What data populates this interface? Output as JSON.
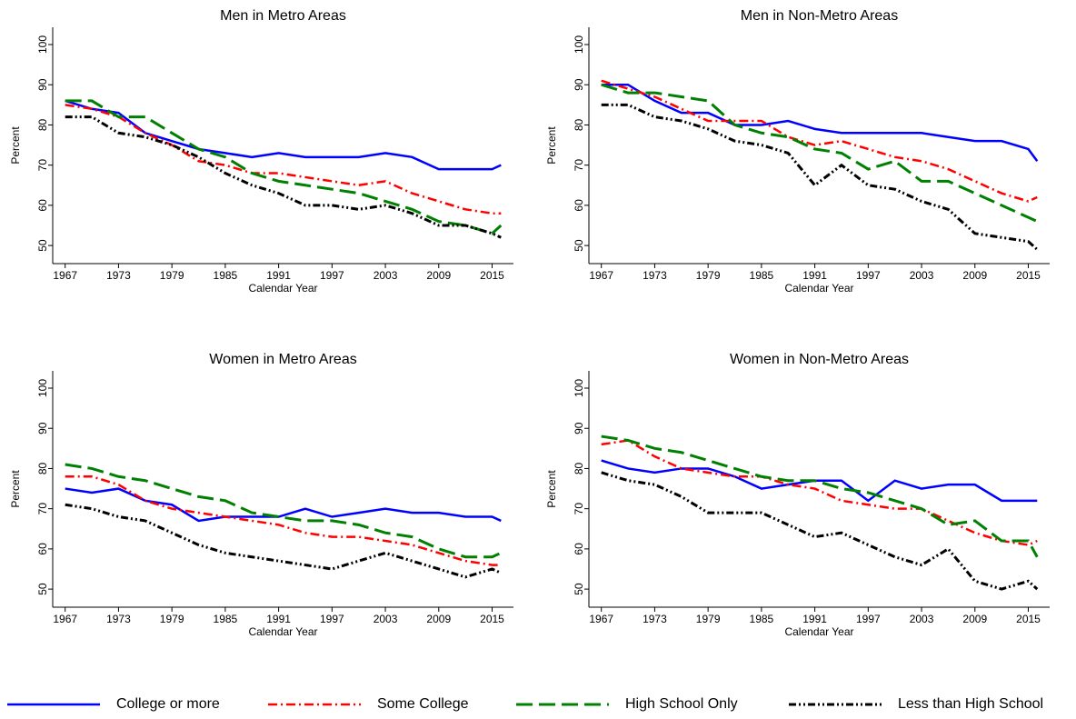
{
  "chart_data": [
    {
      "type": "line",
      "title": "Men in Metro Areas",
      "x_label": "Calendar Year",
      "y_label": "Percent",
      "x": [
        1967,
        1970,
        1973,
        1976,
        1979,
        1982,
        1985,
        1988,
        1991,
        1994,
        1997,
        2000,
        2003,
        2006,
        2009,
        2012,
        2015,
        2016
      ],
      "xlim": [
        1965.6,
        2017.4
      ],
      "ylim": [
        45.5,
        104.3
      ],
      "xticks": [
        1967,
        1973,
        1979,
        1985,
        1991,
        1997,
        2003,
        2009,
        2015
      ],
      "yticks": [
        50,
        60,
        70,
        80,
        90,
        100
      ],
      "series": [
        {
          "name": "College or more",
          "color": "#0000ff",
          "values": [
            86,
            84,
            83,
            78,
            76,
            74,
            73,
            72,
            73,
            72,
            72,
            72,
            73,
            72,
            69,
            69,
            69,
            70
          ]
        },
        {
          "name": "Some College",
          "color": "#ff0000",
          "values": [
            85,
            84,
            82,
            78,
            75,
            71,
            70,
            68,
            68,
            67,
            66,
            65,
            66,
            63,
            61,
            59,
            58,
            58
          ]
        },
        {
          "name": "High School Only",
          "color": "#008000",
          "values": [
            86,
            86,
            82,
            82,
            78,
            74,
            72,
            68,
            66,
            65,
            64,
            63,
            61,
            59,
            56,
            55,
            53,
            55
          ]
        },
        {
          "name": "Less than High School",
          "color": "#000000",
          "values": [
            82,
            82,
            78,
            77,
            75,
            72,
            68,
            65,
            63,
            60,
            60,
            59,
            60,
            58,
            55,
            55,
            53,
            52
          ]
        }
      ]
    },
    {
      "type": "line",
      "title": "Men in Non-Metro Areas",
      "x_label": "Calendar Year",
      "y_label": "Percent",
      "x": [
        1967,
        1970,
        1973,
        1976,
        1979,
        1982,
        1985,
        1988,
        1991,
        1994,
        1997,
        2000,
        2003,
        2006,
        2009,
        2012,
        2015,
        2016
      ],
      "xlim": [
        1965.6,
        2017.4
      ],
      "ylim": [
        45.5,
        104.3
      ],
      "xticks": [
        1967,
        1973,
        1979,
        1985,
        1991,
        1997,
        2003,
        2009,
        2015
      ],
      "yticks": [
        50,
        60,
        70,
        80,
        90,
        100
      ],
      "series": [
        {
          "color": "#0000ff",
          "values": [
            90,
            90,
            86,
            83,
            83,
            80,
            80,
            81,
            79,
            78,
            78,
            78,
            78,
            77,
            76,
            76,
            74,
            71
          ]
        },
        {
          "color": "#ff0000",
          "values": [
            91,
            89,
            87,
            84,
            81,
            81,
            81,
            77,
            75,
            76,
            74,
            72,
            71,
            69,
            66,
            63,
            61,
            62
          ]
        },
        {
          "color": "#008000",
          "values": [
            90,
            88,
            88,
            87,
            86,
            80,
            78,
            77,
            74,
            73,
            69,
            71,
            66,
            66,
            63,
            60,
            57,
            56
          ]
        },
        {
          "color": "#000000",
          "values": [
            85,
            85,
            82,
            81,
            79,
            76,
            75,
            73,
            65,
            70,
            65,
            64,
            61,
            59,
            53,
            52,
            51,
            49
          ]
        }
      ]
    },
    {
      "type": "line",
      "title": "Women in Metro Areas",
      "x_label": "Calendar Year",
      "y_label": "Percent",
      "x": [
        1967,
        1970,
        1973,
        1976,
        1979,
        1982,
        1985,
        1988,
        1991,
        1994,
        1997,
        2000,
        2003,
        2006,
        2009,
        2012,
        2015,
        2016
      ],
      "xlim": [
        1965.6,
        2017.4
      ],
      "ylim": [
        45.5,
        104.3
      ],
      "xticks": [
        1967,
        1973,
        1979,
        1985,
        1991,
        1997,
        2003,
        2009,
        2015
      ],
      "yticks": [
        50,
        60,
        70,
        80,
        90,
        100
      ],
      "series": [
        {
          "color": "#0000ff",
          "values": [
            75,
            74,
            75,
            72,
            71,
            67,
            68,
            68,
            68,
            70,
            68,
            69,
            70,
            69,
            69,
            68,
            68,
            67
          ]
        },
        {
          "color": "#ff0000",
          "values": [
            78,
            78,
            76,
            72,
            70,
            69,
            68,
            67,
            66,
            64,
            63,
            63,
            62,
            61,
            59,
            57,
            56,
            56
          ]
        },
        {
          "color": "#008000",
          "values": [
            81,
            80,
            78,
            77,
            75,
            73,
            72,
            69,
            68,
            67,
            67,
            66,
            64,
            63,
            60,
            58,
            58,
            59
          ]
        },
        {
          "color": "#000000",
          "values": [
            71,
            70,
            68,
            67,
            64,
            61,
            59,
            58,
            57,
            56,
            55,
            57,
            59,
            57,
            55,
            53,
            55,
            54
          ]
        }
      ]
    },
    {
      "type": "line",
      "title": "Women in Non-Metro Areas",
      "x_label": "Calendar Year",
      "y_label": "Percent",
      "x": [
        1967,
        1970,
        1973,
        1976,
        1979,
        1982,
        1985,
        1988,
        1991,
        1994,
        1997,
        2000,
        2003,
        2006,
        2009,
        2012,
        2015,
        2016
      ],
      "xlim": [
        1965.6,
        2017.4
      ],
      "ylim": [
        45.5,
        104.3
      ],
      "xticks": [
        1967,
        1973,
        1979,
        1985,
        1991,
        1997,
        2003,
        2009,
        2015
      ],
      "yticks": [
        50,
        60,
        70,
        80,
        90,
        100
      ],
      "series": [
        {
          "color": "#0000ff",
          "values": [
            82,
            80,
            79,
            80,
            80,
            78,
            75,
            76,
            77,
            77,
            72,
            77,
            75,
            76,
            76,
            72,
            72,
            72
          ]
        },
        {
          "color": "#ff0000",
          "values": [
            86,
            87,
            83,
            80,
            79,
            78,
            78,
            76,
            75,
            72,
            71,
            70,
            70,
            67,
            64,
            62,
            61,
            62
          ]
        },
        {
          "color": "#008000",
          "values": [
            88,
            87,
            85,
            84,
            82,
            80,
            78,
            77,
            77,
            75,
            74,
            72,
            70,
            66,
            67,
            62,
            62,
            58
          ]
        },
        {
          "color": "#000000",
          "values": [
            79,
            77,
            76,
            73,
            69,
            69,
            69,
            66,
            63,
            64,
            61,
            58,
            56,
            60,
            52,
            50,
            52,
            50
          ]
        }
      ]
    }
  ]
}
